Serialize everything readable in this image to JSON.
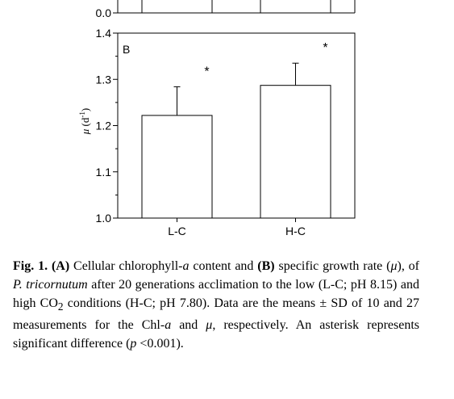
{
  "chart_data": [
    {
      "panel": "A",
      "type": "bar",
      "categories": [
        "L-C",
        "H-C"
      ],
      "yticks": [
        "0.0"
      ]
    },
    {
      "panel": "B",
      "type": "bar",
      "panel_label": "B",
      "categories": [
        "L-C",
        "H-C"
      ],
      "values": [
        1.222,
        1.287
      ],
      "errors": [
        0.062,
        0.048
      ],
      "significance": [
        "*",
        "*"
      ],
      "ylabel_symbol": "μ",
      "ylabel_unit": "(d",
      "ylabel_exp": "-1",
      "ylabel_close": ")",
      "ylim": [
        1.0,
        1.4
      ],
      "yticks": [
        "1.0",
        "1.1",
        "1.2",
        "1.3",
        "1.4"
      ],
      "bar_color": "#ffffff",
      "edge_color": "#000000"
    }
  ],
  "caption": {
    "fig_label": "Fig. 1.",
    "a_label": "(A)",
    "t1": " Cellular chlorophyll-",
    "t1_italic": "a",
    "t2": " content and ",
    "b_label": "(B)",
    "t3": " specific growth rate (",
    "t3_italic": "μ",
    "t4": "), of ",
    "species": "P. tricornutum",
    "t5": " after 20 generations acclimation to the low (L-C; pH 8.15) and high CO",
    "t5_sub": "2",
    "t6": " conditions (H-C; pH 7.80). Data are the means ± SD of 10 and 27 measurements for the Chl-",
    "t6_italic": "a",
    "t7": " and ",
    "t7_italic": "μ",
    "t8": ", respectively. An asterisk represents significant difference (",
    "t8_italic": "p",
    "t9": " <0.001)."
  }
}
